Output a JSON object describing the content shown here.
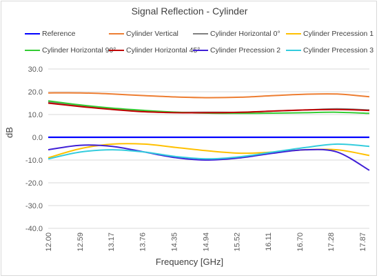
{
  "chart_data": {
    "type": "line",
    "title": "Signal Reflection - Cylinder",
    "xlabel": "Frequency [GHz]",
    "ylabel": "dB",
    "ylim": [
      -40,
      30
    ],
    "yticks": [
      "30.0",
      "20.0",
      "10.0",
      "0.0",
      "-10.0",
      "-20.0",
      "-30.0",
      "-40.0"
    ],
    "xlim": [
      12.0,
      18.0
    ],
    "xticks": [
      "12.00",
      "12.59",
      "13.17",
      "13.76",
      "14.35",
      "14.94",
      "15.52",
      "16.11",
      "16.70",
      "17.28",
      "17.87"
    ],
    "grid": "horizontal",
    "legend_position": "top",
    "series": [
      {
        "name": "Reference",
        "color": "#0000ff",
        "x": [
          12.0,
          18.0
        ],
        "values": [
          0,
          0
        ]
      },
      {
        "name": "Cylinder Vertical",
        "color": "#ed7d31",
        "x": [
          12.0,
          12.6,
          13.2,
          13.8,
          14.4,
          15.0,
          15.6,
          16.2,
          16.8,
          17.4,
          18.0
        ],
        "values": [
          19.5,
          19.5,
          19.0,
          18.3,
          17.7,
          17.4,
          17.6,
          18.3,
          18.9,
          19.0,
          17.8
        ]
      },
      {
        "name": "Cylinder Horizontal 0°",
        "color": "#7f7f7f",
        "x": [
          12.0,
          12.6,
          13.2,
          13.8,
          14.4,
          15.0,
          15.6,
          16.2,
          16.8,
          17.4,
          18.0
        ],
        "values": [
          15.5,
          14.0,
          12.5,
          11.5,
          11.0,
          11.0,
          11.0,
          11.5,
          12.0,
          12.5,
          12.0
        ]
      },
      {
        "name": "Cylinder Precession 1",
        "color": "#ffc000",
        "x": [
          12.0,
          12.6,
          13.2,
          13.8,
          14.4,
          15.0,
          15.6,
          16.2,
          16.8,
          17.4,
          18.0
        ],
        "values": [
          -9.0,
          -5.0,
          -3.0,
          -3.0,
          -4.5,
          -6.0,
          -7.0,
          -6.5,
          -5.5,
          -5.5,
          -8.0
        ]
      },
      {
        "name": "Cylinder Horizontal 90°",
        "color": "#33cc33",
        "x": [
          12.0,
          12.6,
          13.2,
          13.8,
          14.4,
          15.0,
          15.6,
          16.2,
          16.8,
          17.4,
          18.0
        ],
        "values": [
          16.0,
          14.2,
          12.8,
          11.8,
          11.0,
          10.6,
          10.5,
          10.6,
          10.8,
          11.0,
          10.5
        ]
      },
      {
        "name": "Cylinder Horizontal 45°",
        "color": "#c00000",
        "x": [
          12.0,
          12.6,
          13.2,
          13.8,
          14.4,
          15.0,
          15.6,
          16.2,
          16.8,
          17.4,
          18.0
        ],
        "values": [
          15.0,
          13.5,
          12.2,
          11.2,
          10.8,
          10.8,
          11.0,
          11.5,
          12.0,
          12.2,
          11.8
        ]
      },
      {
        "name": "Cylinder Precession 2",
        "color": "#3f1fd6",
        "x": [
          12.0,
          12.6,
          13.2,
          13.8,
          14.4,
          15.0,
          15.6,
          16.2,
          16.8,
          17.4,
          18.0
        ],
        "values": [
          -5.5,
          -3.5,
          -4.0,
          -6.5,
          -9.0,
          -10.0,
          -9.0,
          -7.0,
          -5.5,
          -6.5,
          -14.5
        ]
      },
      {
        "name": "Cylinder Precession 3",
        "color": "#33ccdd",
        "x": [
          12.0,
          12.6,
          13.2,
          13.8,
          14.4,
          15.0,
          15.6,
          16.2,
          16.8,
          17.4,
          18.0
        ],
        "values": [
          -9.5,
          -6.5,
          -5.5,
          -6.5,
          -8.5,
          -9.5,
          -8.5,
          -6.5,
          -4.5,
          -3.0,
          -4.0
        ]
      }
    ]
  }
}
